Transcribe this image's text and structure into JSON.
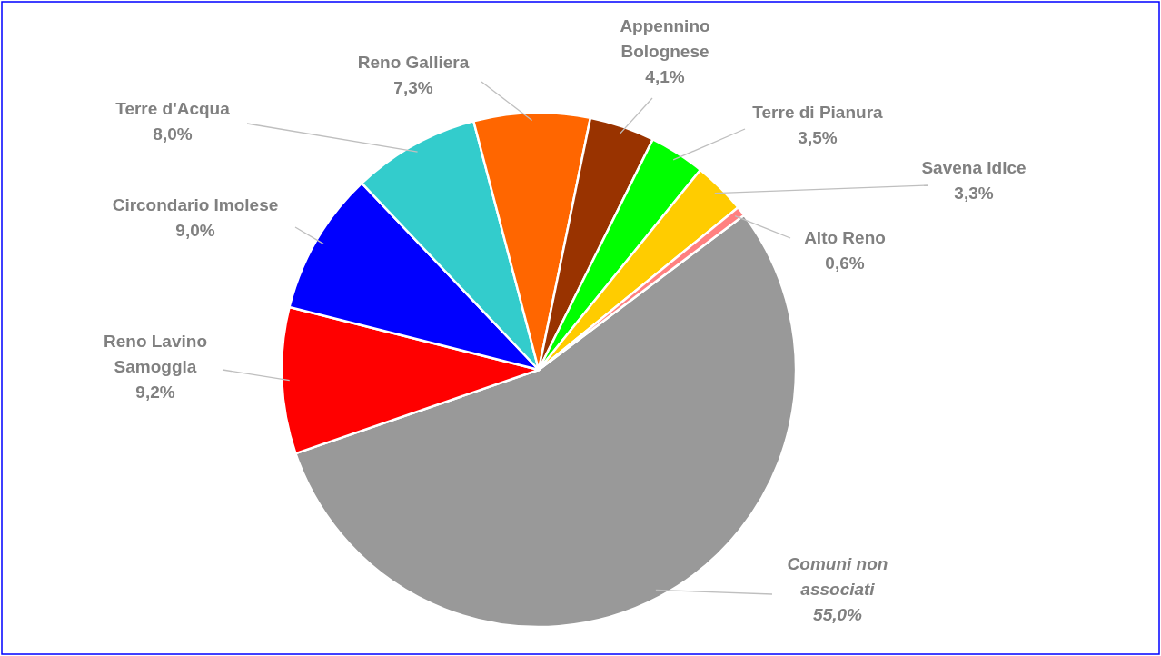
{
  "chart_data": {
    "type": "pie",
    "categories": [
      "Comuni non associati",
      "Reno Lavino Samoggia",
      "Circondario Imolese",
      "Terre d'Acqua",
      "Reno Galliera",
      "Appennino Bolognese",
      "Terre di Pianura",
      "Savena Idice",
      "Alto Reno"
    ],
    "values": [
      55.0,
      9.2,
      9.0,
      8.0,
      7.3,
      4.1,
      3.5,
      3.3,
      0.6
    ],
    "value_labels": [
      "55,0%",
      "9,2%",
      "9,0%",
      "8,0%",
      "7,3%",
      "4,1%",
      "3,5%",
      "3,3%",
      "0,6%"
    ],
    "colors": [
      "#999999",
      "#ff0000",
      "#0000ff",
      "#33cccc",
      "#ff6600",
      "#993300",
      "#00ff00",
      "#ffcc00",
      "#ff8080"
    ]
  }
}
